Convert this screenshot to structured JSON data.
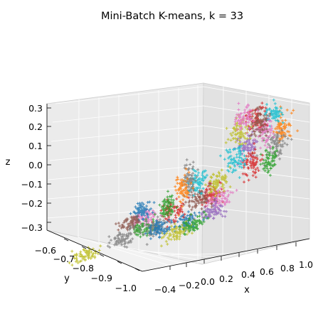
{
  "chart_data": {
    "type": "scatter",
    "projection": "3d",
    "title": "Mini-Batch K-means, k = 33",
    "xlabel": "x",
    "ylabel": "y",
    "zlabel": "z",
    "xlim": [
      -0.5,
      1.05
    ],
    "ylim": [
      -1.0,
      -0.55
    ],
    "zlim": [
      -0.33,
      0.35
    ],
    "x_ticks": [
      -0.4,
      -0.2,
      0.0,
      0.2,
      0.4,
      0.6,
      0.8,
      1.0
    ],
    "x_tick_labels": [
      "−0.4",
      "−0.2",
      "0.0",
      "0.2",
      "0.4",
      "0.6",
      "0.8",
      "1.0"
    ],
    "y_ticks": [
      -0.6,
      -0.7,
      -0.8,
      -0.9,
      -1.0
    ],
    "y_tick_labels": [
      "−0.6",
      "−0.7",
      "−0.8",
      "−0.9",
      "−1.0"
    ],
    "z_ticks": [
      0.3,
      0.2,
      0.1,
      0.0,
      -0.1,
      -0.2,
      -0.3
    ],
    "z_tick_labels": [
      "0.3",
      "0.2",
      "0.1",
      "0.0",
      "−0.1",
      "−0.2",
      "−0.3"
    ],
    "grid": true,
    "legend": "none",
    "marker": "+",
    "colors": [
      "#1f77b4",
      "#ff7f0e",
      "#2ca02c",
      "#d62728",
      "#9467bd",
      "#8c564b",
      "#e377c2",
      "#7f7f7f",
      "#bcbd22",
      "#17becf"
    ],
    "clusters": [
      {
        "center": [
          0.95,
          -0.58,
          0.12
        ],
        "spread": [
          0.05,
          0.02,
          0.05
        ],
        "color": "#ff7f0e"
      },
      {
        "center": [
          0.95,
          -0.62,
          0.22
        ],
        "spread": [
          0.05,
          0.02,
          0.04
        ],
        "color": "#17becf"
      },
      {
        "center": [
          0.95,
          -0.6,
          0.05
        ],
        "spread": [
          0.05,
          0.02,
          0.05
        ],
        "color": "#7f7f7f"
      },
      {
        "center": [
          0.95,
          -0.64,
          -0.02
        ],
        "spread": [
          0.05,
          0.02,
          0.05
        ],
        "color": "#2ca02c"
      },
      {
        "center": [
          0.95,
          -0.66,
          0.14
        ],
        "spread": [
          0.05,
          0.02,
          0.05
        ],
        "color": "#e377c2"
      },
      {
        "center": [
          0.95,
          -0.7,
          0.23
        ],
        "spread": [
          0.05,
          0.02,
          0.05
        ],
        "color": "#d62728"
      },
      {
        "center": [
          0.95,
          -0.74,
          0.1
        ],
        "spread": [
          0.05,
          0.02,
          0.05
        ],
        "color": "#9467bd"
      },
      {
        "center": [
          0.95,
          -0.78,
          0.19
        ],
        "spread": [
          0.05,
          0.02,
          0.05
        ],
        "color": "#bcbd22"
      },
      {
        "center": [
          0.95,
          -0.72,
          0.0
        ],
        "spread": [
          0.05,
          0.02,
          0.05
        ],
        "color": "#d62728"
      },
      {
        "center": [
          0.95,
          -0.8,
          0.06
        ],
        "spread": [
          0.05,
          0.02,
          0.05
        ],
        "color": "#17becf"
      },
      {
        "center": [
          0.95,
          -0.68,
          0.2
        ],
        "spread": [
          0.05,
          0.02,
          0.05
        ],
        "color": "#8c564b"
      },
      {
        "center": [
          0.95,
          -0.76,
          0.26
        ],
        "spread": [
          0.05,
          0.02,
          0.04
        ],
        "color": "#e377c2"
      },
      {
        "center": [
          0.45,
          -0.66,
          -0.14
        ],
        "spread": [
          0.05,
          0.03,
          0.04
        ],
        "color": "#d62728"
      },
      {
        "center": [
          0.6,
          -0.7,
          -0.16
        ],
        "spread": [
          0.06,
          0.03,
          0.04
        ],
        "color": "#e377c2"
      },
      {
        "center": [
          0.4,
          -0.6,
          -0.1
        ],
        "spread": [
          0.05,
          0.02,
          0.04
        ],
        "color": "#bcbd22"
      },
      {
        "center": [
          0.65,
          -0.75,
          -0.2
        ],
        "spread": [
          0.06,
          0.03,
          0.03
        ],
        "color": "#9467bd"
      },
      {
        "center": [
          0.5,
          -0.8,
          -0.22
        ],
        "spread": [
          0.06,
          0.03,
          0.03
        ],
        "color": "#1f77b4"
      },
      {
        "center": [
          0.45,
          -0.72,
          -0.14
        ],
        "spread": [
          0.05,
          0.03,
          0.04
        ],
        "color": "#8c564b"
      },
      {
        "center": [
          0.4,
          -0.7,
          -0.05
        ],
        "spread": [
          0.05,
          0.02,
          0.05
        ],
        "color": "#17becf"
      },
      {
        "center": [
          0.5,
          -0.85,
          -0.26
        ],
        "spread": [
          0.07,
          0.03,
          0.03
        ],
        "color": "#bcbd22"
      },
      {
        "center": [
          0.6,
          -0.82,
          -0.24
        ],
        "spread": [
          0.05,
          0.03,
          0.03
        ],
        "color": "#2ca02c"
      },
      {
        "center": [
          0.28,
          -0.68,
          -0.04
        ],
        "spread": [
          0.02,
          0.02,
          0.06
        ],
        "color": "#7f7f7f"
      },
      {
        "center": [
          0.26,
          -0.7,
          -0.08
        ],
        "spread": [
          0.03,
          0.02,
          0.06
        ],
        "color": "#ff7f0e"
      },
      {
        "center": [
          0.2,
          -0.72,
          -0.18
        ],
        "spread": [
          0.05,
          0.03,
          0.04
        ],
        "color": "#d62728"
      },
      {
        "center": [
          0.15,
          -0.72,
          -0.15
        ],
        "spread": [
          0.03,
          0.02,
          0.04
        ],
        "color": "#2ca02c"
      },
      {
        "center": [
          -0.1,
          -0.7,
          -0.2
        ],
        "spread": [
          0.06,
          0.03,
          0.03
        ],
        "color": "#e377c2"
      },
      {
        "center": [
          -0.2,
          -0.66,
          -0.17
        ],
        "spread": [
          0.05,
          0.02,
          0.03
        ],
        "color": "#1f77b4"
      },
      {
        "center": [
          -0.3,
          -0.66,
          -0.22
        ],
        "spread": [
          0.05,
          0.03,
          0.02
        ],
        "color": "#8c564b"
      },
      {
        "center": [
          -0.05,
          -0.72,
          -0.24
        ],
        "spread": [
          0.05,
          0.03,
          0.03
        ],
        "color": "#2ca02c"
      },
      {
        "center": [
          0.05,
          -0.72,
          -0.25
        ],
        "spread": [
          0.05,
          0.03,
          0.03
        ],
        "color": "#7f7f7f"
      },
      {
        "center": [
          0.15,
          -0.75,
          -0.25
        ],
        "spread": [
          0.05,
          0.03,
          0.03
        ],
        "color": "#1f77b4"
      },
      {
        "center": [
          -0.25,
          -0.9,
          -0.28
        ],
        "spread": [
          0.06,
          0.04,
          0.03
        ],
        "color": "#bcbd22"
      },
      {
        "center": [
          -0.15,
          -0.78,
          -0.26
        ],
        "spread": [
          0.05,
          0.03,
          0.03
        ],
        "color": "#7f7f7f"
      }
    ]
  }
}
